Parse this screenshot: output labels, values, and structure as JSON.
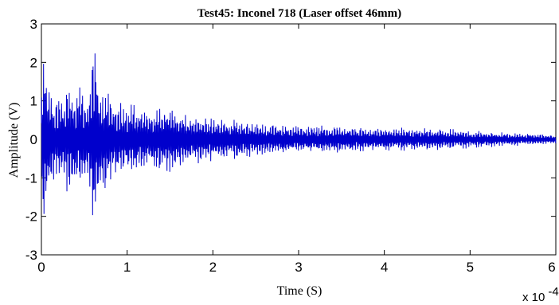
{
  "chart_data": {
    "type": "line",
    "title": "Test45: Inconel 718 (Laser offset 46mm)",
    "xlabel": "Time (S)",
    "ylabel": "Amplitude (V)",
    "x_multiplier_label": "x 10",
    "x_multiplier_exponent": "-4",
    "xlim": [
      0,
      6
    ],
    "ylim": [
      -3,
      3
    ],
    "x_ticks": [
      "0",
      "1",
      "2",
      "3",
      "4",
      "5",
      "6"
    ],
    "y_ticks": [
      "3",
      "2",
      "1",
      "0",
      "-1",
      "-2",
      "-3"
    ],
    "grid": false,
    "line_color": "#0000cc",
    "series": [
      {
        "envelope": {
          "t": [
            0,
            0.03,
            0.08,
            0.15,
            0.25,
            0.35,
            0.45,
            0.55,
            0.61,
            0.7,
            0.85,
            1.0,
            1.15,
            1.3,
            1.45,
            1.7,
            2.0,
            2.3,
            2.6,
            3.0,
            3.4,
            3.8,
            4.2,
            4.6,
            5.0,
            5.5,
            6.0
          ],
          "a": [
            2.0,
            2.3,
            1.8,
            1.1,
            1.3,
            1.5,
            1.4,
            1.2,
            2.7,
            1.6,
            1.1,
            1.0,
            0.9,
            0.85,
            1.0,
            0.7,
            0.65,
            0.55,
            0.45,
            0.4,
            0.38,
            0.35,
            0.32,
            0.3,
            0.25,
            0.18,
            0.12
          ]
        },
        "sample_count": 2400,
        "cycles": 90
      }
    ]
  }
}
